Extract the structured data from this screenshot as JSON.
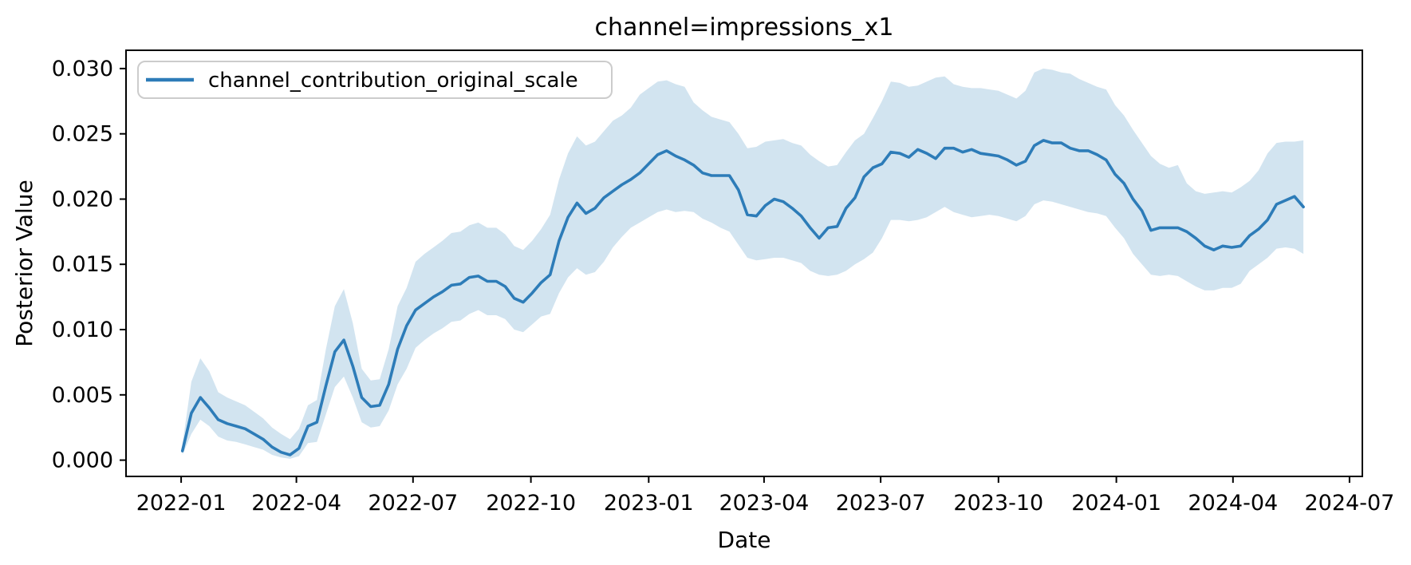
{
  "figure": {
    "title": "channel=impressions_x1",
    "x_axis_label": "Date",
    "y_axis_label": "Posterior Value",
    "background_color": "#ffffff"
  },
  "legend": {
    "label": "channel_contribution_original_scale",
    "line_color": "#2d7cb8",
    "position": "upper left"
  },
  "chart_data": {
    "type": "line",
    "title": "channel=impressions_x1",
    "xlabel": "Date",
    "ylabel": "Posterior Value",
    "grid": false,
    "legend_position": "upper left",
    "series_name": "channel_contribution_original_scale",
    "line_color": "#2d7cb8",
    "band_color": "#1f77b4",
    "band_opacity": 0.2,
    "xlim": [
      "2021-11-19",
      "2024-07-11"
    ],
    "ylim": [
      -0.00125,
      0.0314
    ],
    "y_ticks": {
      "values": [
        0.0,
        0.005,
        0.01,
        0.015,
        0.02,
        0.025,
        0.03
      ],
      "labels": [
        "0.000",
        "0.005",
        "0.010",
        "0.015",
        "0.020",
        "0.025",
        "0.030"
      ]
    },
    "x_ticks": [
      {
        "date": "2022-01-01",
        "label": "2022-01"
      },
      {
        "date": "2022-04-01",
        "label": "2022-04"
      },
      {
        "date": "2022-07-01",
        "label": "2022-07"
      },
      {
        "date": "2022-10-01",
        "label": "2022-10"
      },
      {
        "date": "2023-01-01",
        "label": "2023-01"
      },
      {
        "date": "2023-04-01",
        "label": "2023-04"
      },
      {
        "date": "2023-07-01",
        "label": "2023-07"
      },
      {
        "date": "2023-10-01",
        "label": "2023-10"
      },
      {
        "date": "2024-01-01",
        "label": "2024-01"
      },
      {
        "date": "2024-04-01",
        "label": "2024-04"
      },
      {
        "date": "2024-07-01",
        "label": "2024-07"
      }
    ],
    "x": [
      "2022-01-02",
      "2022-01-09",
      "2022-01-16",
      "2022-01-23",
      "2022-01-30",
      "2022-02-06",
      "2022-02-13",
      "2022-02-20",
      "2022-02-27",
      "2022-03-06",
      "2022-03-13",
      "2022-03-20",
      "2022-03-27",
      "2022-04-03",
      "2022-04-10",
      "2022-04-17",
      "2022-04-24",
      "2022-05-01",
      "2022-05-08",
      "2022-05-15",
      "2022-05-22",
      "2022-05-29",
      "2022-06-05",
      "2022-06-12",
      "2022-06-19",
      "2022-06-26",
      "2022-07-03",
      "2022-07-10",
      "2022-07-17",
      "2022-07-24",
      "2022-07-31",
      "2022-08-07",
      "2022-08-14",
      "2022-08-21",
      "2022-08-28",
      "2022-09-04",
      "2022-09-11",
      "2022-09-18",
      "2022-09-25",
      "2022-10-02",
      "2022-10-09",
      "2022-10-16",
      "2022-10-23",
      "2022-10-30",
      "2022-11-06",
      "2022-11-13",
      "2022-11-20",
      "2022-11-27",
      "2022-12-04",
      "2022-12-11",
      "2022-12-18",
      "2022-12-25",
      "2023-01-01",
      "2023-01-08",
      "2023-01-15",
      "2023-01-22",
      "2023-01-29",
      "2023-02-05",
      "2023-02-12",
      "2023-02-19",
      "2023-02-26",
      "2023-03-05",
      "2023-03-12",
      "2023-03-19",
      "2023-03-26",
      "2023-04-02",
      "2023-04-09",
      "2023-04-16",
      "2023-04-23",
      "2023-04-30",
      "2023-05-07",
      "2023-05-14",
      "2023-05-21",
      "2023-05-28",
      "2023-06-04",
      "2023-06-11",
      "2023-06-18",
      "2023-06-25",
      "2023-07-02",
      "2023-07-09",
      "2023-07-16",
      "2023-07-23",
      "2023-07-30",
      "2023-08-06",
      "2023-08-13",
      "2023-08-20",
      "2023-08-27",
      "2023-09-03",
      "2023-09-10",
      "2023-09-17",
      "2023-09-24",
      "2023-10-01",
      "2023-10-08",
      "2023-10-15",
      "2023-10-22",
      "2023-10-29",
      "2023-11-05",
      "2023-11-12",
      "2023-11-19",
      "2023-11-26",
      "2023-12-03",
      "2023-12-10",
      "2023-12-17",
      "2023-12-24",
      "2023-12-31",
      "2024-01-07",
      "2024-01-14",
      "2024-01-21",
      "2024-01-28",
      "2024-02-04",
      "2024-02-11",
      "2024-02-18",
      "2024-02-25",
      "2024-03-03",
      "2024-03-10",
      "2024-03-17",
      "2024-03-24",
      "2024-03-31",
      "2024-04-07",
      "2024-04-14",
      "2024-04-21",
      "2024-04-28",
      "2024-05-05",
      "2024-05-12",
      "2024-05-19",
      "2024-05-26"
    ],
    "mean": [
      0.0007,
      0.0036,
      0.0048,
      0.004,
      0.0031,
      0.0028,
      0.0026,
      0.0024,
      0.002,
      0.0016,
      0.001,
      0.0006,
      0.0004,
      0.0009,
      0.0026,
      0.0029,
      0.0057,
      0.0083,
      0.0092,
      0.0072,
      0.0048,
      0.0041,
      0.0042,
      0.0058,
      0.0085,
      0.0103,
      0.0115,
      0.012,
      0.0125,
      0.0129,
      0.0134,
      0.0135,
      0.014,
      0.0141,
      0.0137,
      0.0137,
      0.0133,
      0.0124,
      0.0121,
      0.0128,
      0.0136,
      0.0142,
      0.0168,
      0.0186,
      0.0197,
      0.0189,
      0.0193,
      0.0201,
      0.0206,
      0.0211,
      0.0215,
      0.022,
      0.0227,
      0.0234,
      0.0237,
      0.0233,
      0.023,
      0.0226,
      0.022,
      0.0218,
      0.0218,
      0.0218,
      0.0207,
      0.0188,
      0.0187,
      0.0195,
      0.02,
      0.0198,
      0.0193,
      0.0187,
      0.0178,
      0.017,
      0.0178,
      0.0179,
      0.0193,
      0.0201,
      0.0217,
      0.0224,
      0.0227,
      0.0236,
      0.0235,
      0.0232,
      0.0238,
      0.0235,
      0.0231,
      0.0239,
      0.0239,
      0.0236,
      0.0238,
      0.0235,
      0.0234,
      0.0233,
      0.023,
      0.0226,
      0.0229,
      0.0241,
      0.0245,
      0.0243,
      0.0243,
      0.0239,
      0.0237,
      0.0237,
      0.0234,
      0.023,
      0.0219,
      0.0212,
      0.02,
      0.0191,
      0.0176,
      0.0178,
      0.0178,
      0.0178,
      0.0175,
      0.017,
      0.0164,
      0.0161,
      0.0164,
      0.0163,
      0.0164,
      0.0172,
      0.0177,
      0.0184,
      0.0196,
      0.0199,
      0.0202,
      0.0194
    ],
    "band_lower": [
      0.0004,
      0.002,
      0.0031,
      0.0026,
      0.0018,
      0.0015,
      0.0014,
      0.0012,
      0.001,
      0.0008,
      0.0004,
      0.0002,
      0.0001,
      0.0003,
      0.0013,
      0.0014,
      0.0035,
      0.0056,
      0.0064,
      0.0048,
      0.0029,
      0.0025,
      0.0026,
      0.0038,
      0.0058,
      0.007,
      0.0086,
      0.0092,
      0.0097,
      0.0101,
      0.0106,
      0.0107,
      0.0112,
      0.0115,
      0.0111,
      0.0111,
      0.0108,
      0.01,
      0.0098,
      0.0104,
      0.011,
      0.0112,
      0.0128,
      0.014,
      0.0147,
      0.0142,
      0.0144,
      0.0152,
      0.0163,
      0.0171,
      0.0178,
      0.0182,
      0.0186,
      0.019,
      0.0192,
      0.019,
      0.0191,
      0.019,
      0.0185,
      0.0182,
      0.0178,
      0.0175,
      0.0165,
      0.0155,
      0.0153,
      0.0154,
      0.0155,
      0.0155,
      0.0153,
      0.0151,
      0.0145,
      0.0142,
      0.0141,
      0.0142,
      0.0145,
      0.015,
      0.0154,
      0.0159,
      0.017,
      0.0184,
      0.0184,
      0.0183,
      0.0184,
      0.0186,
      0.019,
      0.0194,
      0.019,
      0.0188,
      0.0186,
      0.0187,
      0.0188,
      0.0187,
      0.0185,
      0.0183,
      0.0187,
      0.0196,
      0.0199,
      0.0198,
      0.0196,
      0.0194,
      0.0192,
      0.019,
      0.0189,
      0.0187,
      0.0178,
      0.017,
      0.0158,
      0.015,
      0.0142,
      0.0141,
      0.0142,
      0.0141,
      0.0137,
      0.0133,
      0.013,
      0.013,
      0.0132,
      0.0132,
      0.0135,
      0.0145,
      0.015,
      0.0155,
      0.0162,
      0.0163,
      0.0162,
      0.0158
    ],
    "band_upper": [
      0.0012,
      0.006,
      0.0078,
      0.0068,
      0.0052,
      0.0048,
      0.0045,
      0.0042,
      0.0037,
      0.0032,
      0.0025,
      0.002,
      0.0016,
      0.0024,
      0.0042,
      0.0046,
      0.0085,
      0.0118,
      0.0131,
      0.0105,
      0.007,
      0.0061,
      0.0062,
      0.0085,
      0.0118,
      0.0132,
      0.0152,
      0.0158,
      0.0163,
      0.0168,
      0.0174,
      0.0175,
      0.018,
      0.0182,
      0.0178,
      0.0178,
      0.0173,
      0.0164,
      0.0161,
      0.0168,
      0.0177,
      0.0188,
      0.0215,
      0.0235,
      0.0248,
      0.0241,
      0.0244,
      0.0252,
      0.026,
      0.0264,
      0.027,
      0.028,
      0.0285,
      0.029,
      0.0291,
      0.0288,
      0.0286,
      0.0274,
      0.0268,
      0.0263,
      0.0261,
      0.0259,
      0.025,
      0.0239,
      0.024,
      0.0244,
      0.0245,
      0.0246,
      0.0243,
      0.0241,
      0.0234,
      0.0229,
      0.0225,
      0.0226,
      0.0236,
      0.0245,
      0.025,
      0.0262,
      0.0275,
      0.029,
      0.0289,
      0.0286,
      0.0287,
      0.029,
      0.0293,
      0.0294,
      0.0288,
      0.0286,
      0.0285,
      0.0285,
      0.0284,
      0.0283,
      0.028,
      0.0277,
      0.0283,
      0.0297,
      0.03,
      0.0299,
      0.0297,
      0.0296,
      0.0292,
      0.0289,
      0.0286,
      0.0284,
      0.0272,
      0.0264,
      0.0253,
      0.0243,
      0.0233,
      0.0227,
      0.0224,
      0.0226,
      0.0212,
      0.0206,
      0.0204,
      0.0205,
      0.0206,
      0.0205,
      0.0209,
      0.0214,
      0.0222,
      0.0235,
      0.0243,
      0.0244,
      0.0244,
      0.0245
    ]
  }
}
